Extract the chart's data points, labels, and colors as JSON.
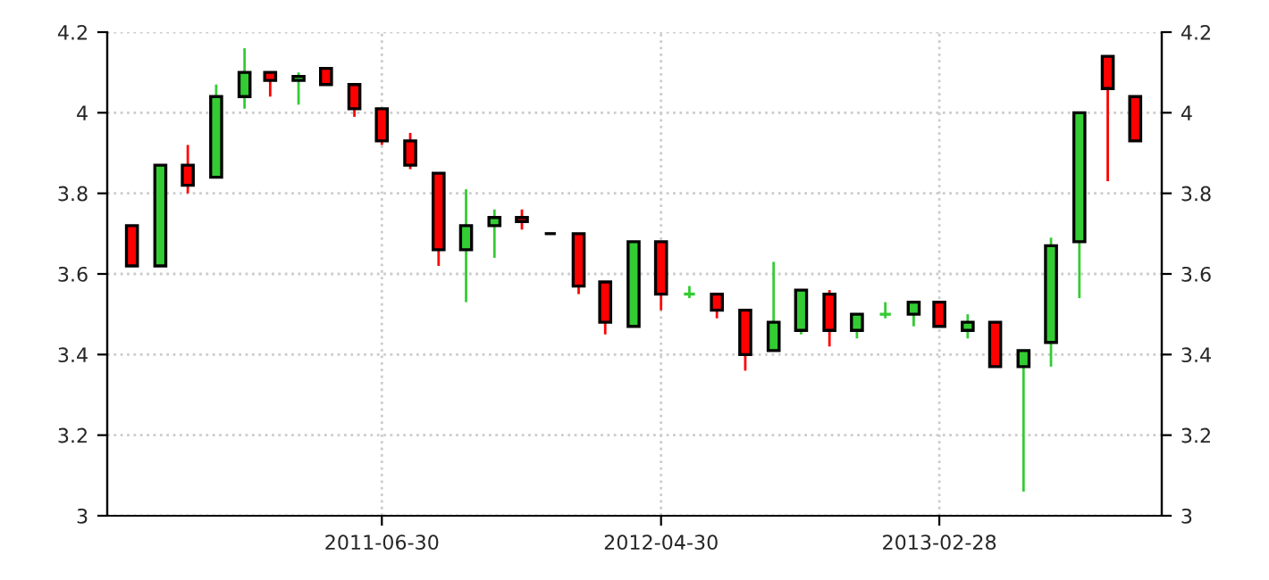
{
  "chart_data": {
    "type": "candlestick",
    "x": [
      "2010-09-30",
      "2010-10-31",
      "2010-11-30",
      "2010-12-31",
      "2011-01-31",
      "2011-02-28",
      "2011-03-31",
      "2011-04-30",
      "2011-05-31",
      "2011-06-30",
      "2011-07-31",
      "2011-08-31",
      "2011-09-30",
      "2011-10-31",
      "2011-11-30",
      "2011-12-31",
      "2012-01-31",
      "2012-02-29",
      "2012-03-31",
      "2012-04-30",
      "2012-05-31",
      "2012-06-30",
      "2012-07-31",
      "2012-08-31",
      "2012-09-30",
      "2012-10-31",
      "2012-11-30",
      "2012-12-31",
      "2013-01-31",
      "2013-02-28",
      "2013-03-31",
      "2013-04-30",
      "2013-05-31",
      "2013-06-30",
      "2013-07-31",
      "2013-08-31",
      "2013-09-30"
    ],
    "ohlc": [
      [
        3.72,
        3.72,
        3.62,
        3.62
      ],
      [
        3.62,
        3.87,
        3.62,
        3.87
      ],
      [
        3.87,
        3.92,
        3.8,
        3.82
      ],
      [
        3.84,
        4.07,
        3.84,
        4.04
      ],
      [
        4.04,
        4.16,
        4.01,
        4.1
      ],
      [
        4.1,
        4.1,
        4.04,
        4.08
      ],
      [
        4.08,
        4.1,
        4.02,
        4.09
      ],
      [
        4.11,
        4.11,
        4.07,
        4.07
      ],
      [
        4.07,
        4.07,
        3.99,
        4.01
      ],
      [
        4.01,
        4.01,
        3.92,
        3.93
      ],
      [
        3.93,
        3.95,
        3.86,
        3.87
      ],
      [
        3.85,
        3.85,
        3.62,
        3.66
      ],
      [
        3.66,
        3.81,
        3.53,
        3.72
      ],
      [
        3.72,
        3.76,
        3.64,
        3.74
      ],
      [
        3.74,
        3.76,
        3.71,
        3.73
      ],
      [
        3.7,
        3.7,
        3.7,
        3.7
      ],
      [
        3.7,
        3.7,
        3.55,
        3.57
      ],
      [
        3.58,
        3.58,
        3.45,
        3.48
      ],
      [
        3.47,
        3.68,
        3.47,
        3.68
      ],
      [
        3.68,
        3.68,
        3.51,
        3.55
      ],
      [
        3.55,
        3.57,
        3.54,
        3.55
      ],
      [
        3.55,
        3.55,
        3.49,
        3.51
      ],
      [
        3.51,
        3.51,
        3.36,
        3.4
      ],
      [
        3.41,
        3.63,
        3.41,
        3.48
      ],
      [
        3.46,
        3.56,
        3.45,
        3.56
      ],
      [
        3.55,
        3.56,
        3.42,
        3.46
      ],
      [
        3.46,
        3.5,
        3.44,
        3.5
      ],
      [
        3.5,
        3.53,
        3.49,
        3.5
      ],
      [
        3.5,
        3.53,
        3.47,
        3.53
      ],
      [
        3.53,
        3.53,
        3.47,
        3.47
      ],
      [
        3.46,
        3.5,
        3.44,
        3.48
      ],
      [
        3.48,
        3.48,
        3.37,
        3.37
      ],
      [
        3.37,
        3.41,
        3.06,
        3.41
      ],
      [
        3.43,
        3.69,
        3.37,
        3.67
      ],
      [
        3.68,
        4.0,
        3.54,
        4.0
      ],
      [
        4.14,
        4.14,
        3.83,
        4.06
      ],
      [
        4.04,
        4.04,
        3.93,
        3.93
      ]
    ],
    "colors": [
      "#ff0000",
      "#33cc33",
      "#ff0000",
      "#33cc33",
      "#33cc33",
      "#ff0000",
      "#33cc33",
      "#ff0000",
      "#ff0000",
      "#ff0000",
      "#ff0000",
      "#ff0000",
      "#33cc33",
      "#33cc33",
      "#ff0000",
      "#000000",
      "#ff0000",
      "#ff0000",
      "#33cc33",
      "#ff0000",
      "#33cc33",
      "#ff0000",
      "#ff0000",
      "#33cc33",
      "#33cc33",
      "#ff0000",
      "#33cc33",
      "#33cc33",
      "#33cc33",
      "#ff0000",
      "#33cc33",
      "#ff0000",
      "#33cc33",
      "#33cc33",
      "#33cc33",
      "#ff0000",
      "#ff0000"
    ],
    "xlim": [
      "2010-09-03",
      "2013-10-29"
    ],
    "xticks": [
      "2011-06-30",
      "2012-04-30",
      "2013-02-28"
    ],
    "ylim": [
      3,
      4.2
    ],
    "yticks": [
      3,
      3.2,
      3.4,
      3.6,
      3.8,
      4,
      4.2
    ],
    "y2lim": [
      3,
      4.2
    ],
    "y2ticks": [
      3,
      3.2,
      3.4,
      3.6,
      3.8,
      4,
      4.2
    ],
    "grid": true
  }
}
